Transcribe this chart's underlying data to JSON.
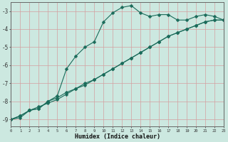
{
  "xlabel": "Humidex (Indice chaleur)",
  "bg_color": "#cce8e0",
  "line_color": "#1a6b5a",
  "grid_color": "#d4a0a0",
  "axis_color": "#666666",
  "line_upper_x": [
    0,
    1,
    2,
    3,
    4,
    5,
    6,
    7,
    8,
    9,
    10,
    11,
    12,
    13,
    14,
    15,
    16,
    17,
    18,
    19,
    20,
    21,
    22,
    23
  ],
  "line_upper_y": [
    -9.0,
    -8.9,
    -8.5,
    -8.4,
    -8.0,
    -7.7,
    -6.2,
    -5.5,
    -5.0,
    -4.7,
    -3.6,
    -3.1,
    -2.8,
    -2.7,
    -3.1,
    -3.3,
    -3.2,
    -3.2,
    -3.5,
    -3.5,
    -3.3,
    -3.2,
    -3.3,
    -3.5
  ],
  "line_diag_x": [
    0,
    1,
    2,
    3,
    4,
    5,
    6,
    7,
    8,
    9,
    10,
    11,
    12,
    13,
    14,
    15,
    16,
    17,
    18,
    19,
    20,
    21,
    22,
    23
  ],
  "line_diag_y": [
    -9.0,
    -8.8,
    -8.5,
    -8.3,
    -8.1,
    -7.9,
    -7.6,
    -7.3,
    -7.1,
    -6.8,
    -6.5,
    -6.2,
    -5.9,
    -5.6,
    -5.3,
    -5.0,
    -4.7,
    -4.4,
    -4.2,
    -4.0,
    -3.8,
    -3.6,
    -3.5,
    -3.5
  ],
  "line_mid_x": [
    0,
    1,
    2,
    3,
    4,
    5,
    6,
    7,
    8,
    9,
    10,
    11,
    12,
    13,
    14,
    15,
    16,
    17,
    18,
    19,
    20,
    21,
    22,
    23
  ],
  "line_mid_y": [
    -9.0,
    -8.8,
    -8.5,
    -8.4,
    -8.0,
    -7.8,
    -7.5,
    -7.3,
    -7.0,
    -6.8,
    -6.5,
    -6.2,
    -5.9,
    -5.6,
    -5.3,
    -5.0,
    -4.7,
    -4.4,
    -4.2,
    -4.0,
    -3.8,
    -3.6,
    -3.5,
    -3.5
  ],
  "xlim": [
    0,
    23
  ],
  "ylim": [
    -9.4,
    -2.5
  ],
  "yticks": [
    -9,
    -8,
    -7,
    -6,
    -5,
    -4,
    -3
  ],
  "xticks": [
    0,
    1,
    2,
    3,
    4,
    5,
    6,
    7,
    8,
    9,
    10,
    11,
    12,
    13,
    14,
    15,
    16,
    17,
    18,
    19,
    20,
    21,
    22,
    23
  ],
  "markersize": 2.5
}
